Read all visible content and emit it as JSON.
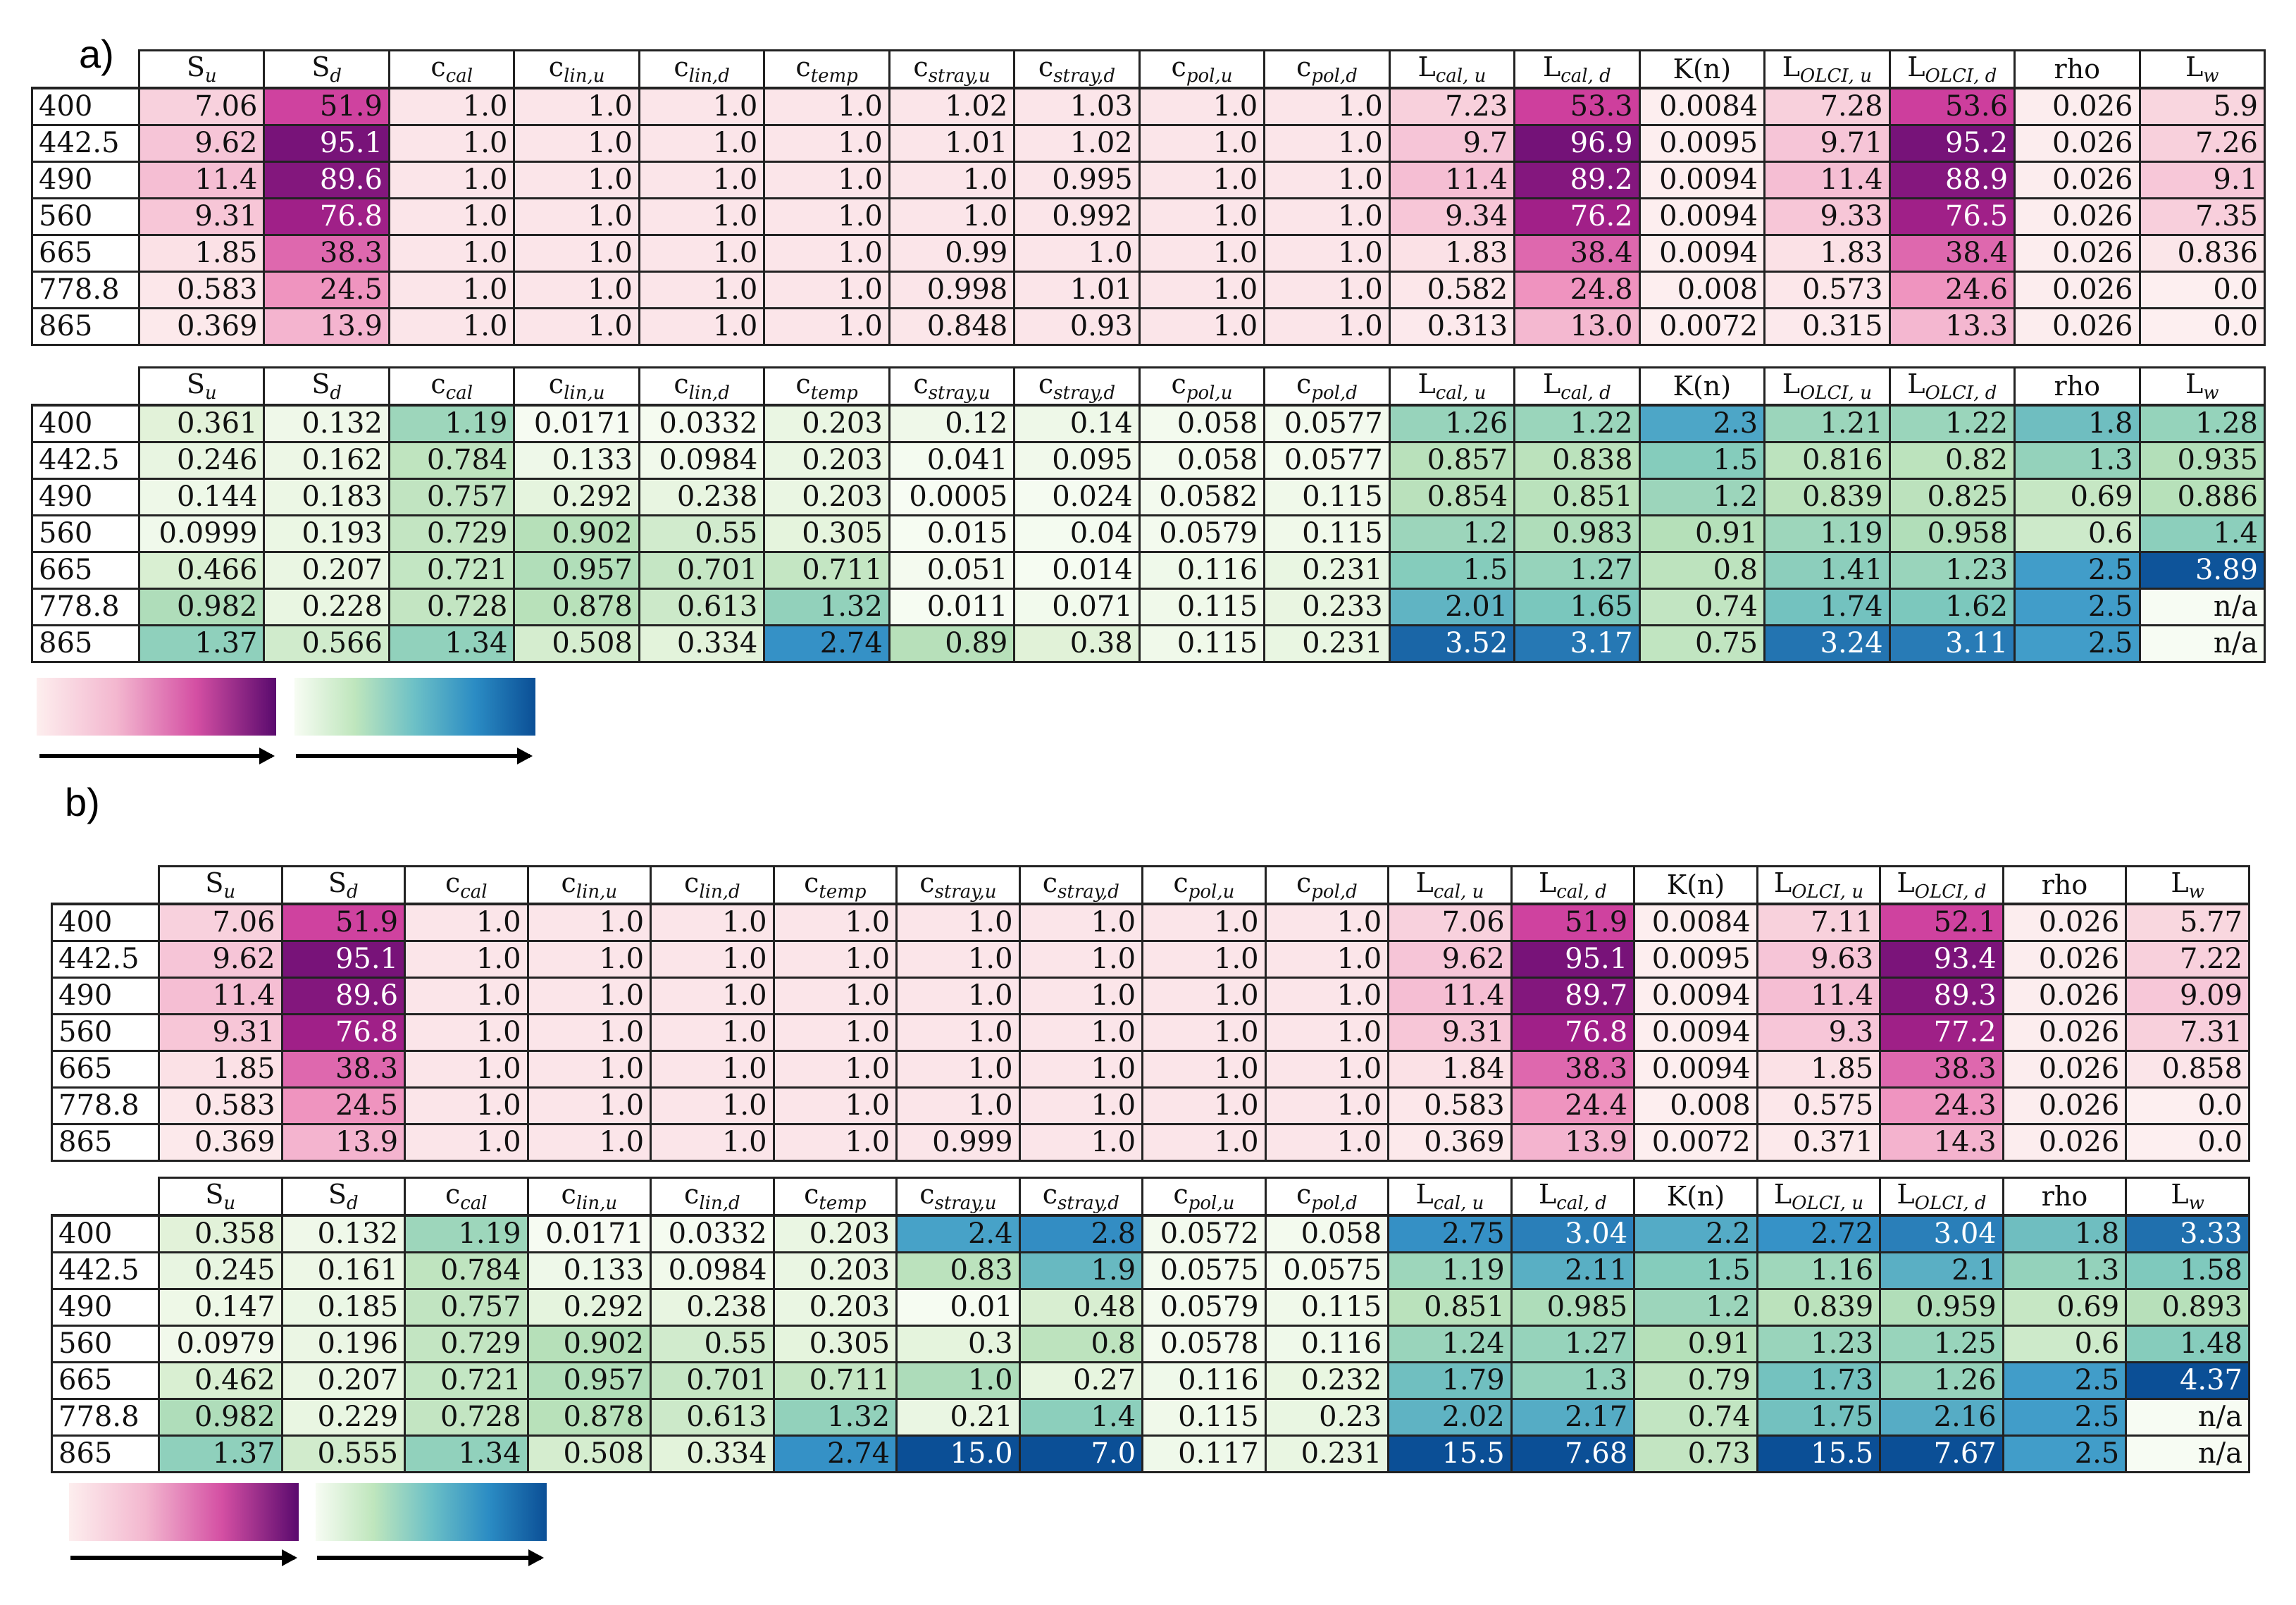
{
  "panels": [
    {
      "label": "a)",
      "headers": [
        {
          "base": "S",
          "sub": "u"
        },
        {
          "base": "S",
          "sub": "d"
        },
        {
          "base": "c",
          "sub": "cal"
        },
        {
          "base": "c",
          "sub": "lin,u"
        },
        {
          "base": "c",
          "sub": "lin,d"
        },
        {
          "base": "c",
          "sub": "temp"
        },
        {
          "base": "c",
          "sub": "stray,u"
        },
        {
          "base": "c",
          "sub": "stray,d"
        },
        {
          "base": "c",
          "sub": "pol,u"
        },
        {
          "base": "c",
          "sub": "pol,d"
        },
        {
          "base": "L",
          "sub": "cal, u"
        },
        {
          "base": "L",
          "sub": "cal, d"
        },
        {
          "base": "K(n)",
          "sub": ""
        },
        {
          "base": "L",
          "sub": "OLCI, u"
        },
        {
          "base": "L",
          "sub": "OLCI, d"
        },
        {
          "base": "rho",
          "sub": ""
        },
        {
          "base": "L",
          "sub": "w"
        }
      ],
      "wavelengths": [
        "400",
        "442.5",
        "490",
        "560",
        "665",
        "778.8",
        "865"
      ],
      "top_values": [
        [
          "7.06",
          "51.9",
          "1.0",
          "1.0",
          "1.0",
          "1.0",
          "1.02",
          "1.03",
          "1.0",
          "1.0",
          "7.23",
          "53.3",
          "0.0084",
          "7.28",
          "53.6",
          "0.026",
          "5.9"
        ],
        [
          "9.62",
          "95.1",
          "1.0",
          "1.0",
          "1.0",
          "1.0",
          "1.01",
          "1.02",
          "1.0",
          "1.0",
          "9.7",
          "96.9",
          "0.0095",
          "9.71",
          "95.2",
          "0.026",
          "7.26"
        ],
        [
          "11.4",
          "89.6",
          "1.0",
          "1.0",
          "1.0",
          "1.0",
          "1.0",
          "0.995",
          "1.0",
          "1.0",
          "11.4",
          "89.2",
          "0.0094",
          "11.4",
          "88.9",
          "0.026",
          "9.1"
        ],
        [
          "9.31",
          "76.8",
          "1.0",
          "1.0",
          "1.0",
          "1.0",
          "1.0",
          "0.992",
          "1.0",
          "1.0",
          "9.34",
          "76.2",
          "0.0094",
          "9.33",
          "76.5",
          "0.026",
          "7.35"
        ],
        [
          "1.85",
          "38.3",
          "1.0",
          "1.0",
          "1.0",
          "1.0",
          "0.99",
          "1.0",
          "1.0",
          "1.0",
          "1.83",
          "38.4",
          "0.0094",
          "1.83",
          "38.4",
          "0.026",
          "0.836"
        ],
        [
          "0.583",
          "24.5",
          "1.0",
          "1.0",
          "1.0",
          "1.0",
          "0.998",
          "1.01",
          "1.0",
          "1.0",
          "0.582",
          "24.8",
          "0.008",
          "0.573",
          "24.6",
          "0.026",
          "0.0"
        ],
        [
          "0.369",
          "13.9",
          "1.0",
          "1.0",
          "1.0",
          "1.0",
          "0.848",
          "0.93",
          "1.0",
          "1.0",
          "0.313",
          "13.0",
          "0.0072",
          "0.315",
          "13.3",
          "0.026",
          "0.0"
        ]
      ],
      "bottom_values": [
        [
          "0.361",
          "0.132",
          "1.19",
          "0.0171",
          "0.0332",
          "0.203",
          "0.12",
          "0.14",
          "0.058",
          "0.0577",
          "1.26",
          "1.22",
          "2.3",
          "1.21",
          "1.22",
          "1.8",
          "1.28"
        ],
        [
          "0.246",
          "0.162",
          "0.784",
          "0.133",
          "0.0984",
          "0.203",
          "0.041",
          "0.095",
          "0.058",
          "0.0577",
          "0.857",
          "0.838",
          "1.5",
          "0.816",
          "0.82",
          "1.3",
          "0.935"
        ],
        [
          "0.144",
          "0.183",
          "0.757",
          "0.292",
          "0.238",
          "0.203",
          "0.0005",
          "0.024",
          "0.0582",
          "0.115",
          "0.854",
          "0.851",
          "1.2",
          "0.839",
          "0.825",
          "0.69",
          "0.886"
        ],
        [
          "0.0999",
          "0.193",
          "0.729",
          "0.902",
          "0.55",
          "0.305",
          "0.015",
          "0.04",
          "0.0579",
          "0.115",
          "1.2",
          "0.983",
          "0.91",
          "1.19",
          "0.958",
          "0.6",
          "1.4"
        ],
        [
          "0.466",
          "0.207",
          "0.721",
          "0.957",
          "0.701",
          "0.711",
          "0.051",
          "0.014",
          "0.116",
          "0.231",
          "1.5",
          "1.27",
          "0.8",
          "1.41",
          "1.23",
          "2.5",
          "3.89"
        ],
        [
          "0.982",
          "0.228",
          "0.728",
          "0.878",
          "0.613",
          "1.32",
          "0.011",
          "0.071",
          "0.115",
          "0.233",
          "2.01",
          "1.65",
          "0.74",
          "1.74",
          "1.62",
          "2.5",
          "n/a"
        ],
        [
          "1.37",
          "0.566",
          "1.34",
          "0.508",
          "0.334",
          "2.74",
          "0.89",
          "0.38",
          "0.115",
          "0.231",
          "3.52",
          "3.17",
          "0.75",
          "3.24",
          "3.11",
          "2.5",
          "n/a"
        ]
      ]
    },
    {
      "label": "b)",
      "headers": [
        {
          "base": "S",
          "sub": "u"
        },
        {
          "base": "S",
          "sub": "d"
        },
        {
          "base": "c",
          "sub": "cal"
        },
        {
          "base": "c",
          "sub": "lin,u"
        },
        {
          "base": "c",
          "sub": "lin,d"
        },
        {
          "base": "c",
          "sub": "temp"
        },
        {
          "base": "c",
          "sub": "stray,u"
        },
        {
          "base": "c",
          "sub": "stray,d"
        },
        {
          "base": "c",
          "sub": "pol,u"
        },
        {
          "base": "c",
          "sub": "pol,d"
        },
        {
          "base": "L",
          "sub": "cal, u"
        },
        {
          "base": "L",
          "sub": "cal, d"
        },
        {
          "base": "K(n)",
          "sub": ""
        },
        {
          "base": "L",
          "sub": "OLCI, u"
        },
        {
          "base": "L",
          "sub": "OLCI, d"
        },
        {
          "base": "rho",
          "sub": ""
        },
        {
          "base": "L",
          "sub": "w"
        }
      ],
      "wavelengths": [
        "400",
        "442.5",
        "490",
        "560",
        "665",
        "778.8",
        "865"
      ],
      "top_values": [
        [
          "7.06",
          "51.9",
          "1.0",
          "1.0",
          "1.0",
          "1.0",
          "1.0",
          "1.0",
          "1.0",
          "1.0",
          "7.06",
          "51.9",
          "0.0084",
          "7.11",
          "52.1",
          "0.026",
          "5.77"
        ],
        [
          "9.62",
          "95.1",
          "1.0",
          "1.0",
          "1.0",
          "1.0",
          "1.0",
          "1.0",
          "1.0",
          "1.0",
          "9.62",
          "95.1",
          "0.0095",
          "9.63",
          "93.4",
          "0.026",
          "7.22"
        ],
        [
          "11.4",
          "89.6",
          "1.0",
          "1.0",
          "1.0",
          "1.0",
          "1.0",
          "1.0",
          "1.0",
          "1.0",
          "11.4",
          "89.7",
          "0.0094",
          "11.4",
          "89.3",
          "0.026",
          "9.09"
        ],
        [
          "9.31",
          "76.8",
          "1.0",
          "1.0",
          "1.0",
          "1.0",
          "1.0",
          "1.0",
          "1.0",
          "1.0",
          "9.31",
          "76.8",
          "0.0094",
          "9.3",
          "77.2",
          "0.026",
          "7.31"
        ],
        [
          "1.85",
          "38.3",
          "1.0",
          "1.0",
          "1.0",
          "1.0",
          "1.0",
          "1.0",
          "1.0",
          "1.0",
          "1.84",
          "38.3",
          "0.0094",
          "1.85",
          "38.3",
          "0.026",
          "0.858"
        ],
        [
          "0.583",
          "24.5",
          "1.0",
          "1.0",
          "1.0",
          "1.0",
          "1.0",
          "1.0",
          "1.0",
          "1.0",
          "0.583",
          "24.4",
          "0.008",
          "0.575",
          "24.3",
          "0.026",
          "0.0"
        ],
        [
          "0.369",
          "13.9",
          "1.0",
          "1.0",
          "1.0",
          "1.0",
          "0.999",
          "1.0",
          "1.0",
          "1.0",
          "0.369",
          "13.9",
          "0.0072",
          "0.371",
          "14.3",
          "0.026",
          "0.0"
        ]
      ],
      "bottom_values": [
        [
          "0.358",
          "0.132",
          "1.19",
          "0.0171",
          "0.0332",
          "0.203",
          "2.4",
          "2.8",
          "0.0572",
          "0.058",
          "2.75",
          "3.04",
          "2.2",
          "2.72",
          "3.04",
          "1.8",
          "3.33"
        ],
        [
          "0.245",
          "0.161",
          "0.784",
          "0.133",
          "0.0984",
          "0.203",
          "0.83",
          "1.9",
          "0.0575",
          "0.0575",
          "1.19",
          "2.11",
          "1.5",
          "1.16",
          "2.1",
          "1.3",
          "1.58"
        ],
        [
          "0.147",
          "0.185",
          "0.757",
          "0.292",
          "0.238",
          "0.203",
          "0.01",
          "0.48",
          "0.0579",
          "0.115",
          "0.851",
          "0.985",
          "1.2",
          "0.839",
          "0.959",
          "0.69",
          "0.893"
        ],
        [
          "0.0979",
          "0.196",
          "0.729",
          "0.902",
          "0.55",
          "0.305",
          "0.3",
          "0.8",
          "0.0578",
          "0.116",
          "1.24",
          "1.27",
          "0.91",
          "1.23",
          "1.25",
          "0.6",
          "1.48"
        ],
        [
          "0.462",
          "0.207",
          "0.721",
          "0.957",
          "0.701",
          "0.711",
          "1.0",
          "0.27",
          "0.116",
          "0.232",
          "1.79",
          "1.3",
          "0.79",
          "1.73",
          "1.26",
          "2.5",
          "4.37"
        ],
        [
          "0.982",
          "0.229",
          "0.728",
          "0.878",
          "0.613",
          "1.32",
          "0.21",
          "1.4",
          "0.115",
          "0.23",
          "2.02",
          "2.17",
          "0.74",
          "1.75",
          "2.16",
          "2.5",
          "n/a"
        ],
        [
          "1.37",
          "0.555",
          "1.34",
          "0.508",
          "0.334",
          "2.74",
          "15.0",
          "7.0",
          "0.117",
          "0.231",
          "15.5",
          "7.68",
          "0.73",
          "15.5",
          "7.67",
          "2.5",
          "n/a"
        ]
      ]
    }
  ],
  "colors": {
    "pink_low": "#fdeeee",
    "pink_mid": "#e078b4",
    "pink_high": "#5a0a6e",
    "green_low": "#f3fbef",
    "green_mid": "#a8dcb2",
    "blue_mid": "#49a9d0",
    "blue_high": "#0b4f96"
  }
}
